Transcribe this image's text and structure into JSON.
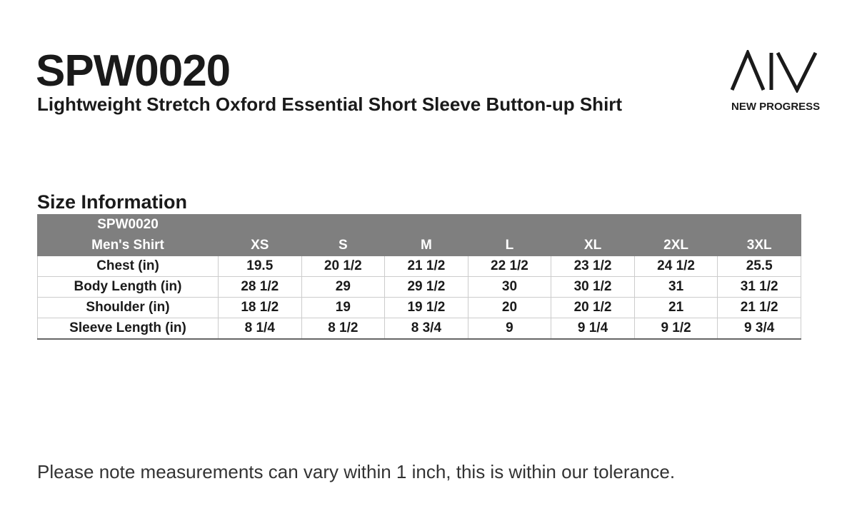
{
  "header": {
    "title": "SPW0020",
    "subtitle": "Lightweight Stretch Oxford Essential Short Sleeve Button-up Shirt",
    "brand": "NEW PROGRESS"
  },
  "section_title": "Size Information",
  "table": {
    "header_rows": [
      [
        "SPW0020"
      ],
      [
        "Men's Shirt",
        "XS",
        "S",
        "M",
        "L",
        "XL",
        "2XL",
        "3XL"
      ]
    ],
    "rows": [
      [
        "Chest (in)",
        "19.5",
        "20 1/2",
        "21 1/2",
        "22 1/2",
        "23 1/2",
        "24 1/2",
        "25.5"
      ],
      [
        "Body Length (in)",
        "28 1/2",
        "29",
        "29 1/2",
        "30",
        "30 1/2",
        "31",
        "31 1/2"
      ],
      [
        "Shoulder (in)",
        "18 1/2",
        "19",
        "19 1/2",
        "20",
        "20 1/2",
        "21",
        "21 1/2"
      ],
      [
        "Sleeve Length (in)",
        "8 1/4",
        "8 1/2",
        "8 3/4",
        "9",
        "9 1/4",
        "9 1/2",
        "9 3/4"
      ]
    ]
  },
  "footnote": "Please note measurements can vary within 1 inch, this is within our tolerance."
}
